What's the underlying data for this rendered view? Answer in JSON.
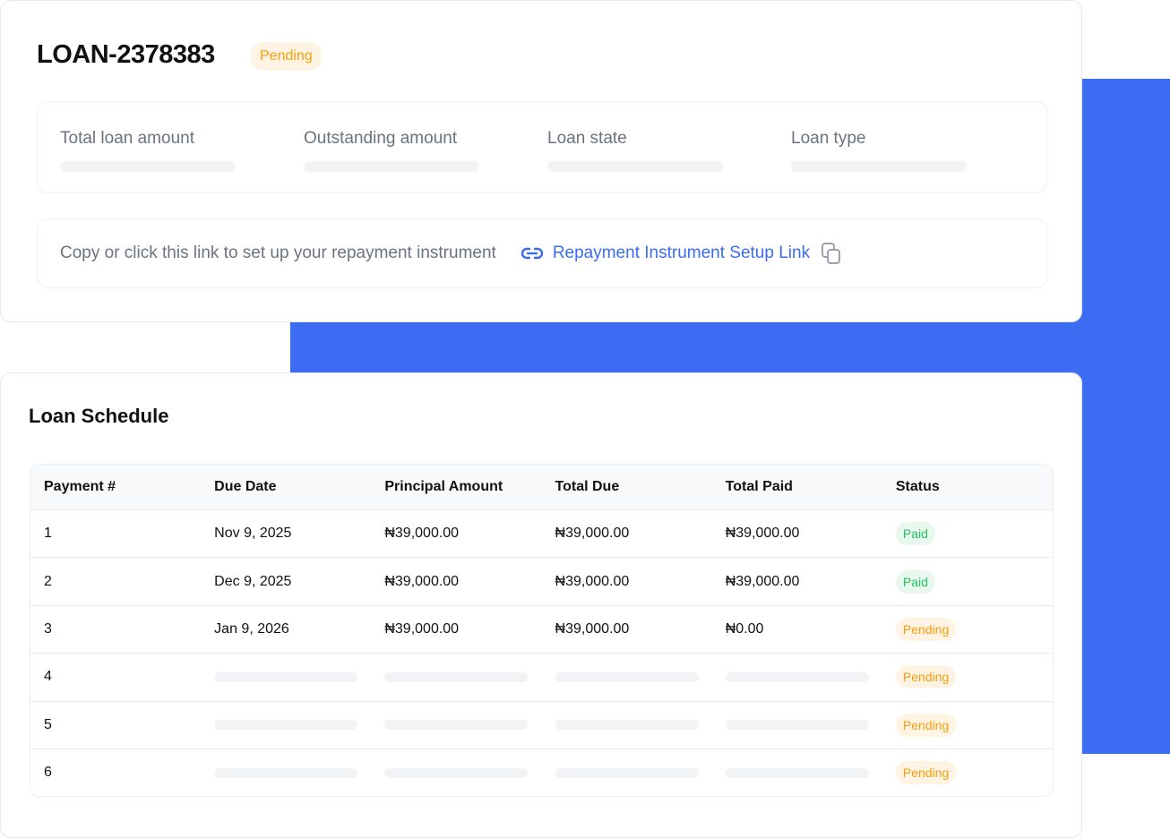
{
  "loan": {
    "id": "LOAN-2378383",
    "status": "Pending",
    "summary": [
      {
        "label": "Total loan amount"
      },
      {
        "label": "Outstanding amount"
      },
      {
        "label": "Loan state"
      },
      {
        "label": "Loan type"
      }
    ],
    "repayment": {
      "instruction": "Copy or click this link to set up your repayment instrument",
      "link_label": "Repayment Instrument Setup Link",
      "link_icon": "link-icon",
      "copy_icon": "copy-icon"
    }
  },
  "schedule": {
    "title": "Loan Schedule",
    "columns": [
      "Payment #",
      "Due Date",
      "Principal Amount",
      "Total Due",
      "Total Paid",
      "Status"
    ],
    "rows": [
      {
        "n": "1",
        "due": "Nov 9, 2025",
        "principal": "₦39,000.00",
        "total_due": "₦39,000.00",
        "paid": "₦39,000.00",
        "status": "Paid"
      },
      {
        "n": "2",
        "due": "Dec 9, 2025",
        "principal": "₦39,000.00",
        "total_due": "₦39,000.00",
        "paid": "₦39,000.00",
        "status": "Paid"
      },
      {
        "n": "3",
        "due": "Jan 9, 2026",
        "principal": "₦39,000.00",
        "total_due": "₦39,000.00",
        "paid": "₦0.00",
        "status": "Pending"
      },
      {
        "n": "4",
        "status": "Pending"
      },
      {
        "n": "5",
        "status": "Pending"
      },
      {
        "n": "6",
        "status": "Pending"
      }
    ]
  },
  "colors": {
    "accent": "#3b6cf2",
    "pending": "#f59e0b",
    "paid": "#22c55e"
  }
}
